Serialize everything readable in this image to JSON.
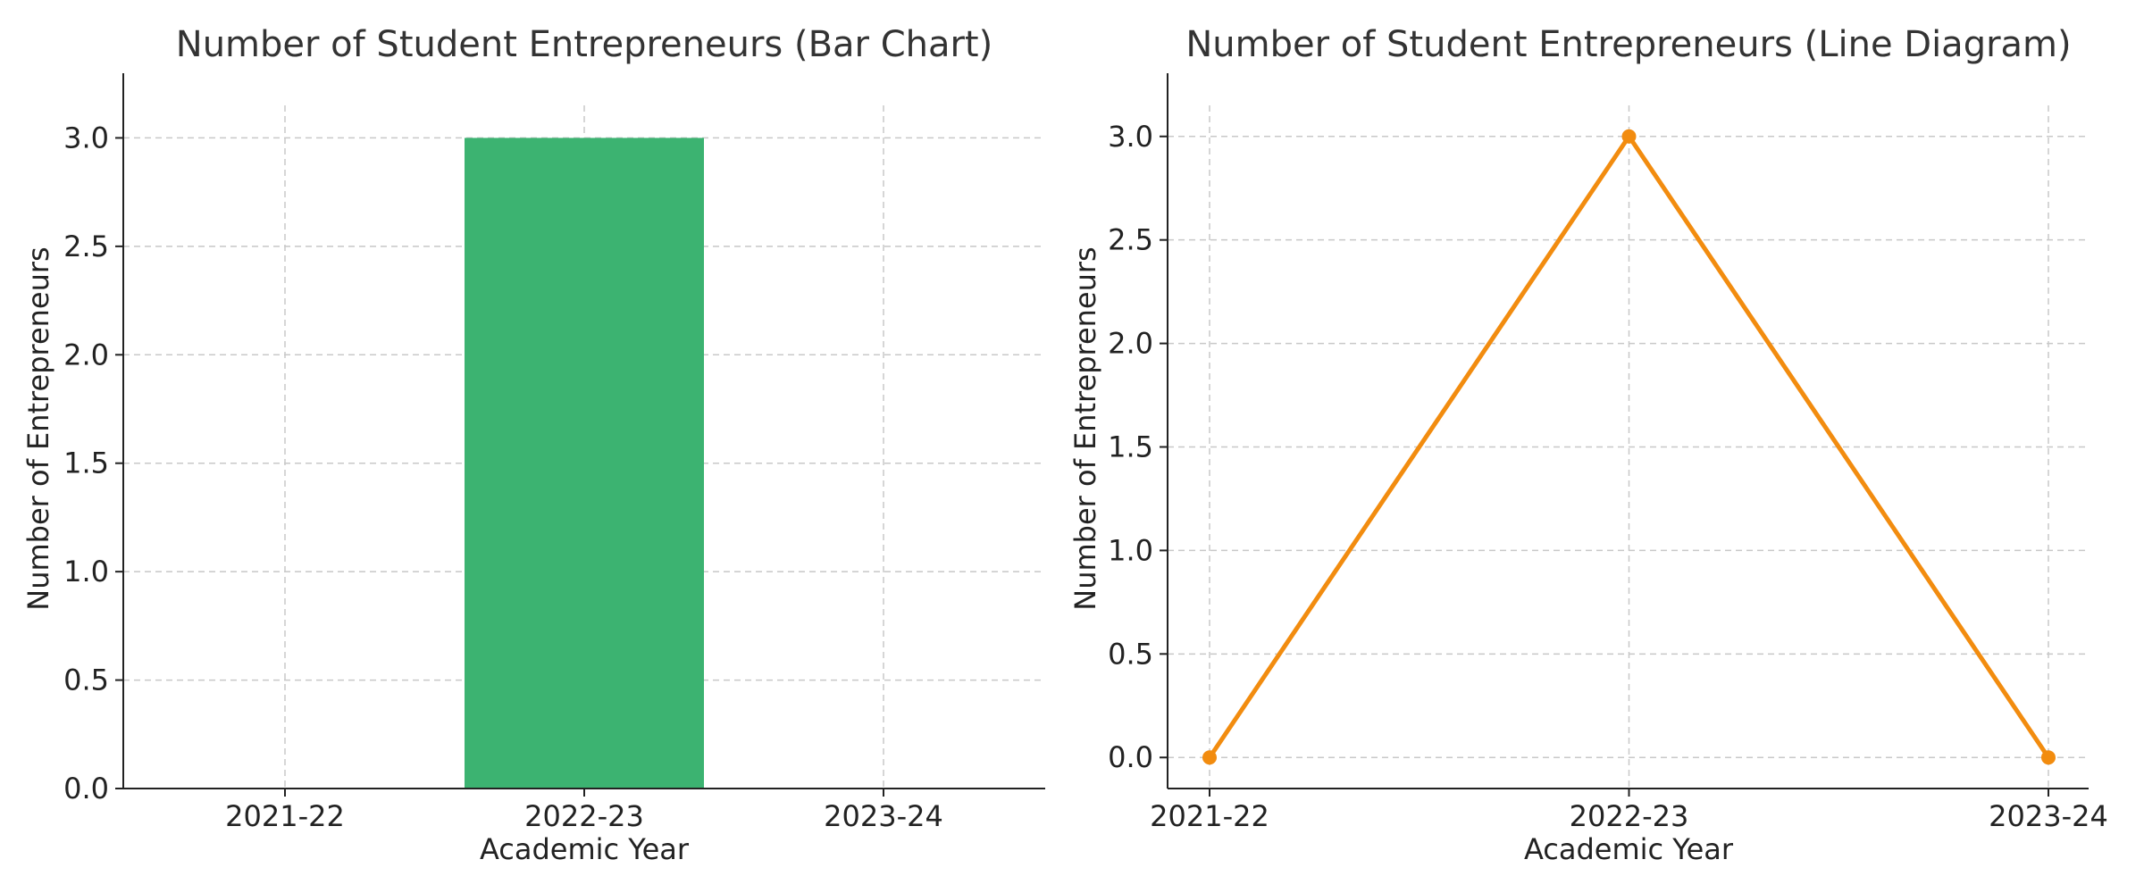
{
  "chart_data": [
    {
      "type": "bar",
      "title": "Number of Student Entrepreneurs (Bar Chart)",
      "xlabel": "Academic Year",
      "ylabel": "Number of Entrepreneurs",
      "categories": [
        "2021-22",
        "2022-23",
        "2023-24"
      ],
      "values": [
        0,
        3,
        0
      ],
      "ylim": [
        0,
        3.15
      ],
      "yticks": [
        "0.0",
        "0.5",
        "1.0",
        "1.5",
        "2.0",
        "2.5",
        "3.0"
      ],
      "grid": true,
      "colors": {
        "bar": "#3cb371"
      }
    },
    {
      "type": "line",
      "title": "Number of Student Entrepreneurs (Line Diagram)",
      "xlabel": "Academic Year",
      "ylabel": "Number of Entrepreneurs",
      "categories": [
        "2021-22",
        "2022-23",
        "2023-24"
      ],
      "values": [
        0,
        3,
        0
      ],
      "ylim": [
        -0.15,
        3.15
      ],
      "yticks": [
        "0.0",
        "0.5",
        "1.0",
        "1.5",
        "2.0",
        "2.5",
        "3.0"
      ],
      "grid": true,
      "colors": {
        "line": "#f28c0f"
      }
    }
  ]
}
